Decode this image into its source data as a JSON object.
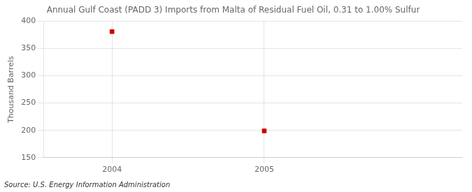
{
  "chart_data": {
    "type": "scatter",
    "title": "Annual Gulf Coast (PADD 3) Imports from Malta of Residual Fuel Oil, 0.31 to 1.00% Sulfur",
    "ylabel": "Thousand Barrels",
    "source": "Source: U.S. Energy Information Administration",
    "x": [
      2004,
      2005
    ],
    "values": [
      381,
      199
    ],
    "color": "#cc0000",
    "marker": "square",
    "xlim": [
      2003.55,
      2006.3
    ],
    "xticks": [
      2004,
      2005
    ],
    "ylim": [
      150,
      400
    ],
    "yticks": [
      150,
      200,
      250,
      300,
      350,
      400
    ],
    "grid": true
  }
}
